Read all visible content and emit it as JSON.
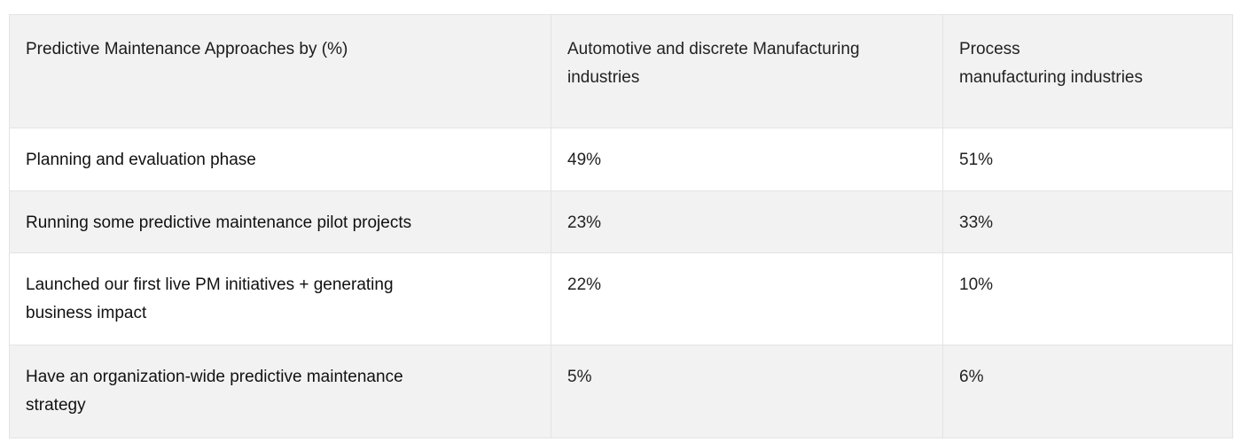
{
  "table": {
    "headers": [
      "Predictive Maintenance Approaches by (%)",
      [
        "Automotive and discrete Manufacturing",
        "industries"
      ],
      [
        "Process",
        "manufacturing industries"
      ]
    ],
    "rows": [
      {
        "label": [
          "Planning and evaluation phase"
        ],
        "automotive": "49%",
        "process": "51%"
      },
      {
        "label": [
          "Running some predictive maintenance pilot projects"
        ],
        "automotive": "23%",
        "process": "33%"
      },
      {
        "label": [
          "Launched our first live PM initiatives + generating",
          "business impact"
        ],
        "automotive": "22%",
        "process": "10%"
      },
      {
        "label": [
          "Have an organization-wide predictive maintenance",
          "strategy"
        ],
        "automotive": "5%",
        "process": "6%"
      }
    ]
  },
  "colors": {
    "header_bg": "#f2f2f2",
    "alt_row_bg": "#f2f2f2",
    "row_bg": "#ffffff",
    "border": "#e4e4e4"
  }
}
